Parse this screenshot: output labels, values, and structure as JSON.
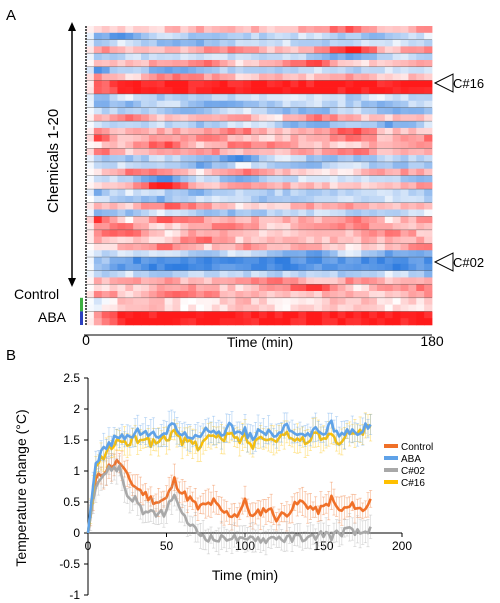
{
  "panel_a": {
    "letter": "A",
    "y_bracket_label": "Chemicals 1-20",
    "control_label": "Control",
    "aba_label": "ABA",
    "x_label": "Time (min)",
    "x_start": "0",
    "x_end": "180",
    "marker_c16": "C#16",
    "marker_c02": "C#02",
    "colors": {
      "warm": "#ff1a1a",
      "cool": "#2f7de0",
      "neutral": "#ffffff"
    }
  },
  "panel_b": {
    "letter": "B"
  },
  "chart_data": [
    {
      "type": "heatmap",
      "xlabel": "Time (min)",
      "xlim": [
        0,
        180
      ],
      "rows": [
        {
          "label": "Chemicals 1-20",
          "values": [
            -0.5,
            0.9,
            0.2,
            -0.6,
            0.5,
            -0.3,
            0.3,
            -0.4,
            0.6,
            -0.2
          ]
        },
        {
          "label": "C#16",
          "values": [
            0.5,
            1.0,
            1.0,
            1.0,
            1.0,
            1.0,
            1.0,
            1.0,
            1.0,
            1.0
          ]
        },
        {
          "label": "C#02",
          "values": [
            -0.3,
            -0.8,
            -0.9,
            -0.9,
            -0.8,
            -0.9,
            -0.8,
            -0.8,
            -0.9,
            -0.8
          ]
        },
        {
          "label": "Control",
          "values": [
            -0.2,
            0.3,
            0.2,
            0.0,
            0.3,
            0.1,
            0.2,
            0.3,
            0.1,
            0.2
          ]
        },
        {
          "label": "ABA",
          "values": [
            0.3,
            1.0,
            1.0,
            1.0,
            1.0,
            1.0,
            1.0,
            1.0,
            1.0,
            1.0
          ]
        }
      ]
    },
    {
      "type": "line",
      "xlabel": "Time (min)",
      "ylabel": "Temperature change (°C)",
      "xlim": [
        0,
        200
      ],
      "ylim": [
        -1,
        2.5
      ],
      "xticks": [
        0,
        50,
        100,
        150,
        200
      ],
      "yticks": [
        -1,
        -0.5,
        0,
        0.5,
        1,
        1.5,
        2,
        2.5
      ],
      "x": [
        0,
        5,
        10,
        15,
        20,
        25,
        30,
        35,
        40,
        45,
        50,
        55,
        60,
        65,
        70,
        75,
        80,
        85,
        90,
        95,
        100,
        105,
        110,
        115,
        120,
        125,
        130,
        135,
        140,
        145,
        150,
        155,
        160,
        165,
        170,
        175,
        180
      ],
      "legend_position": "right",
      "series": [
        {
          "name": "Control",
          "color": "#f07028",
          "values": [
            0,
            0.85,
            1.0,
            1.1,
            1.15,
            0.9,
            0.75,
            0.65,
            0.55,
            0.5,
            0.55,
            0.85,
            0.65,
            0.55,
            0.4,
            0.45,
            0.5,
            0.35,
            0.3,
            0.3,
            0.5,
            0.25,
            0.35,
            0.4,
            0.25,
            0.3,
            0.4,
            0.5,
            0.45,
            0.35,
            0.4,
            0.55,
            0.35,
            0.4,
            0.45,
            0.35,
            0.55
          ]
        },
        {
          "name": "ABA",
          "color": "#5fa2e8",
          "values": [
            0,
            1.15,
            1.35,
            1.45,
            1.6,
            1.55,
            1.6,
            1.65,
            1.55,
            1.6,
            1.65,
            1.75,
            1.55,
            1.6,
            1.5,
            1.65,
            1.7,
            1.6,
            1.75,
            1.6,
            1.65,
            1.5,
            1.7,
            1.6,
            1.55,
            1.75,
            1.6,
            1.65,
            1.55,
            1.7,
            1.6,
            1.75,
            1.55,
            1.65,
            1.6,
            1.7,
            1.75
          ]
        },
        {
          "name": "C#02",
          "color": "#a8a8a8",
          "values": [
            0,
            0.8,
            0.95,
            1.05,
            1.05,
            0.6,
            0.55,
            0.35,
            0.3,
            0.3,
            0.35,
            0.65,
            0.25,
            0.15,
            0.0,
            -0.05,
            -0.1,
            -0.1,
            -0.05,
            -0.1,
            -0.15,
            -0.05,
            -0.1,
            -0.1,
            -0.05,
            -0.1,
            -0.1,
            -0.05,
            -0.1,
            -0.05,
            0.0,
            -0.05,
            0.0,
            0.05,
            0.0,
            0.0,
            0.1
          ]
        },
        {
          "name": "C#16",
          "color": "#ffc000",
          "values": [
            0,
            1.05,
            1.25,
            1.4,
            1.5,
            1.45,
            1.5,
            1.55,
            1.45,
            1.5,
            1.55,
            1.6,
            1.45,
            1.5,
            1.4,
            1.55,
            1.55,
            1.5,
            1.6,
            1.5,
            1.55,
            1.4,
            1.6,
            1.55,
            1.45,
            1.65,
            1.5,
            1.55,
            1.45,
            1.6,
            1.5,
            1.65,
            1.45,
            1.6,
            1.55,
            1.65,
            1.7
          ]
        }
      ]
    }
  ]
}
